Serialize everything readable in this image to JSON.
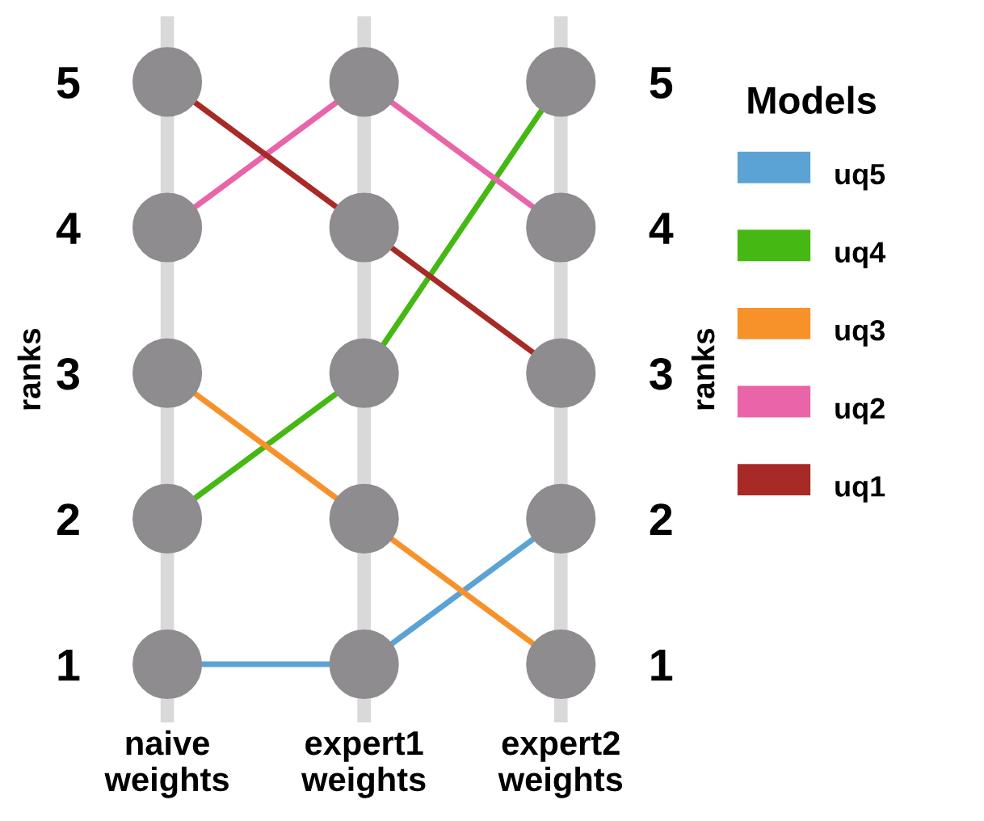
{
  "chart_data": {
    "type": "line",
    "categories": [
      "naive\nweights",
      "expert1\nweights",
      "expert2\nweights"
    ],
    "series": [
      {
        "name": "uq5",
        "color": "#5ba3d4",
        "values": [
          1,
          1,
          2
        ]
      },
      {
        "name": "uq4",
        "color": "#45b814",
        "values": [
          2,
          3,
          5
        ]
      },
      {
        "name": "uq3",
        "color": "#f7922b",
        "values": [
          3,
          2,
          1
        ]
      },
      {
        "name": "uq2",
        "color": "#e964a8",
        "values": [
          4,
          5,
          4
        ]
      },
      {
        "name": "uq1",
        "color": "#a82a26",
        "values": [
          5,
          4,
          3
        ]
      }
    ],
    "ylabel": "ranks",
    "y2label": "ranks",
    "legend_title": "Models",
    "ylim": [
      0.6,
      5.45
    ],
    "yticks": [
      1,
      2,
      3,
      4,
      5
    ],
    "y2lim": [
      0.6,
      5.45
    ],
    "y2ticks": [
      1,
      2,
      3,
      4,
      5
    ],
    "grid": "x",
    "legend": "right",
    "marker": "circle",
    "line_style": "solid"
  }
}
